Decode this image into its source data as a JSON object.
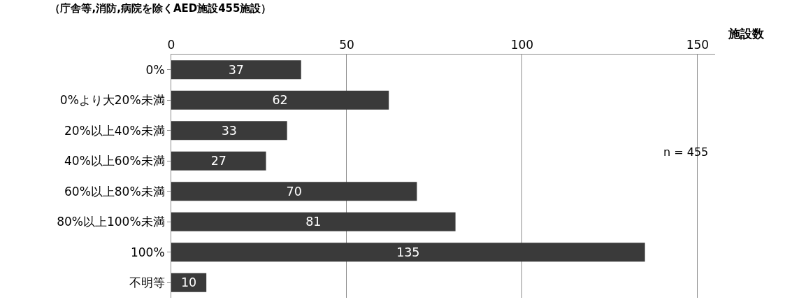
{
  "chart_data": {
    "type": "bar",
    "orientation": "horizontal",
    "title": "（庁舎等,消防,病院を除くAED施設455施設）",
    "xlabel": "施設数",
    "categories": [
      "0%",
      "0%より大20%未満",
      "20%以上40%未満",
      "40%以上60%未満",
      "60%以上80%未満",
      "80%以上100%未満",
      "100%",
      "不明等"
    ],
    "values": [
      37,
      62,
      33,
      27,
      70,
      81,
      135,
      10
    ],
    "color": "#3a3a3a",
    "xlim": [
      0,
      155
    ],
    "xticks": [
      0,
      50,
      100,
      150
    ],
    "grid": "x",
    "data_labels": true,
    "annotations": [
      "n = 455"
    ]
  }
}
